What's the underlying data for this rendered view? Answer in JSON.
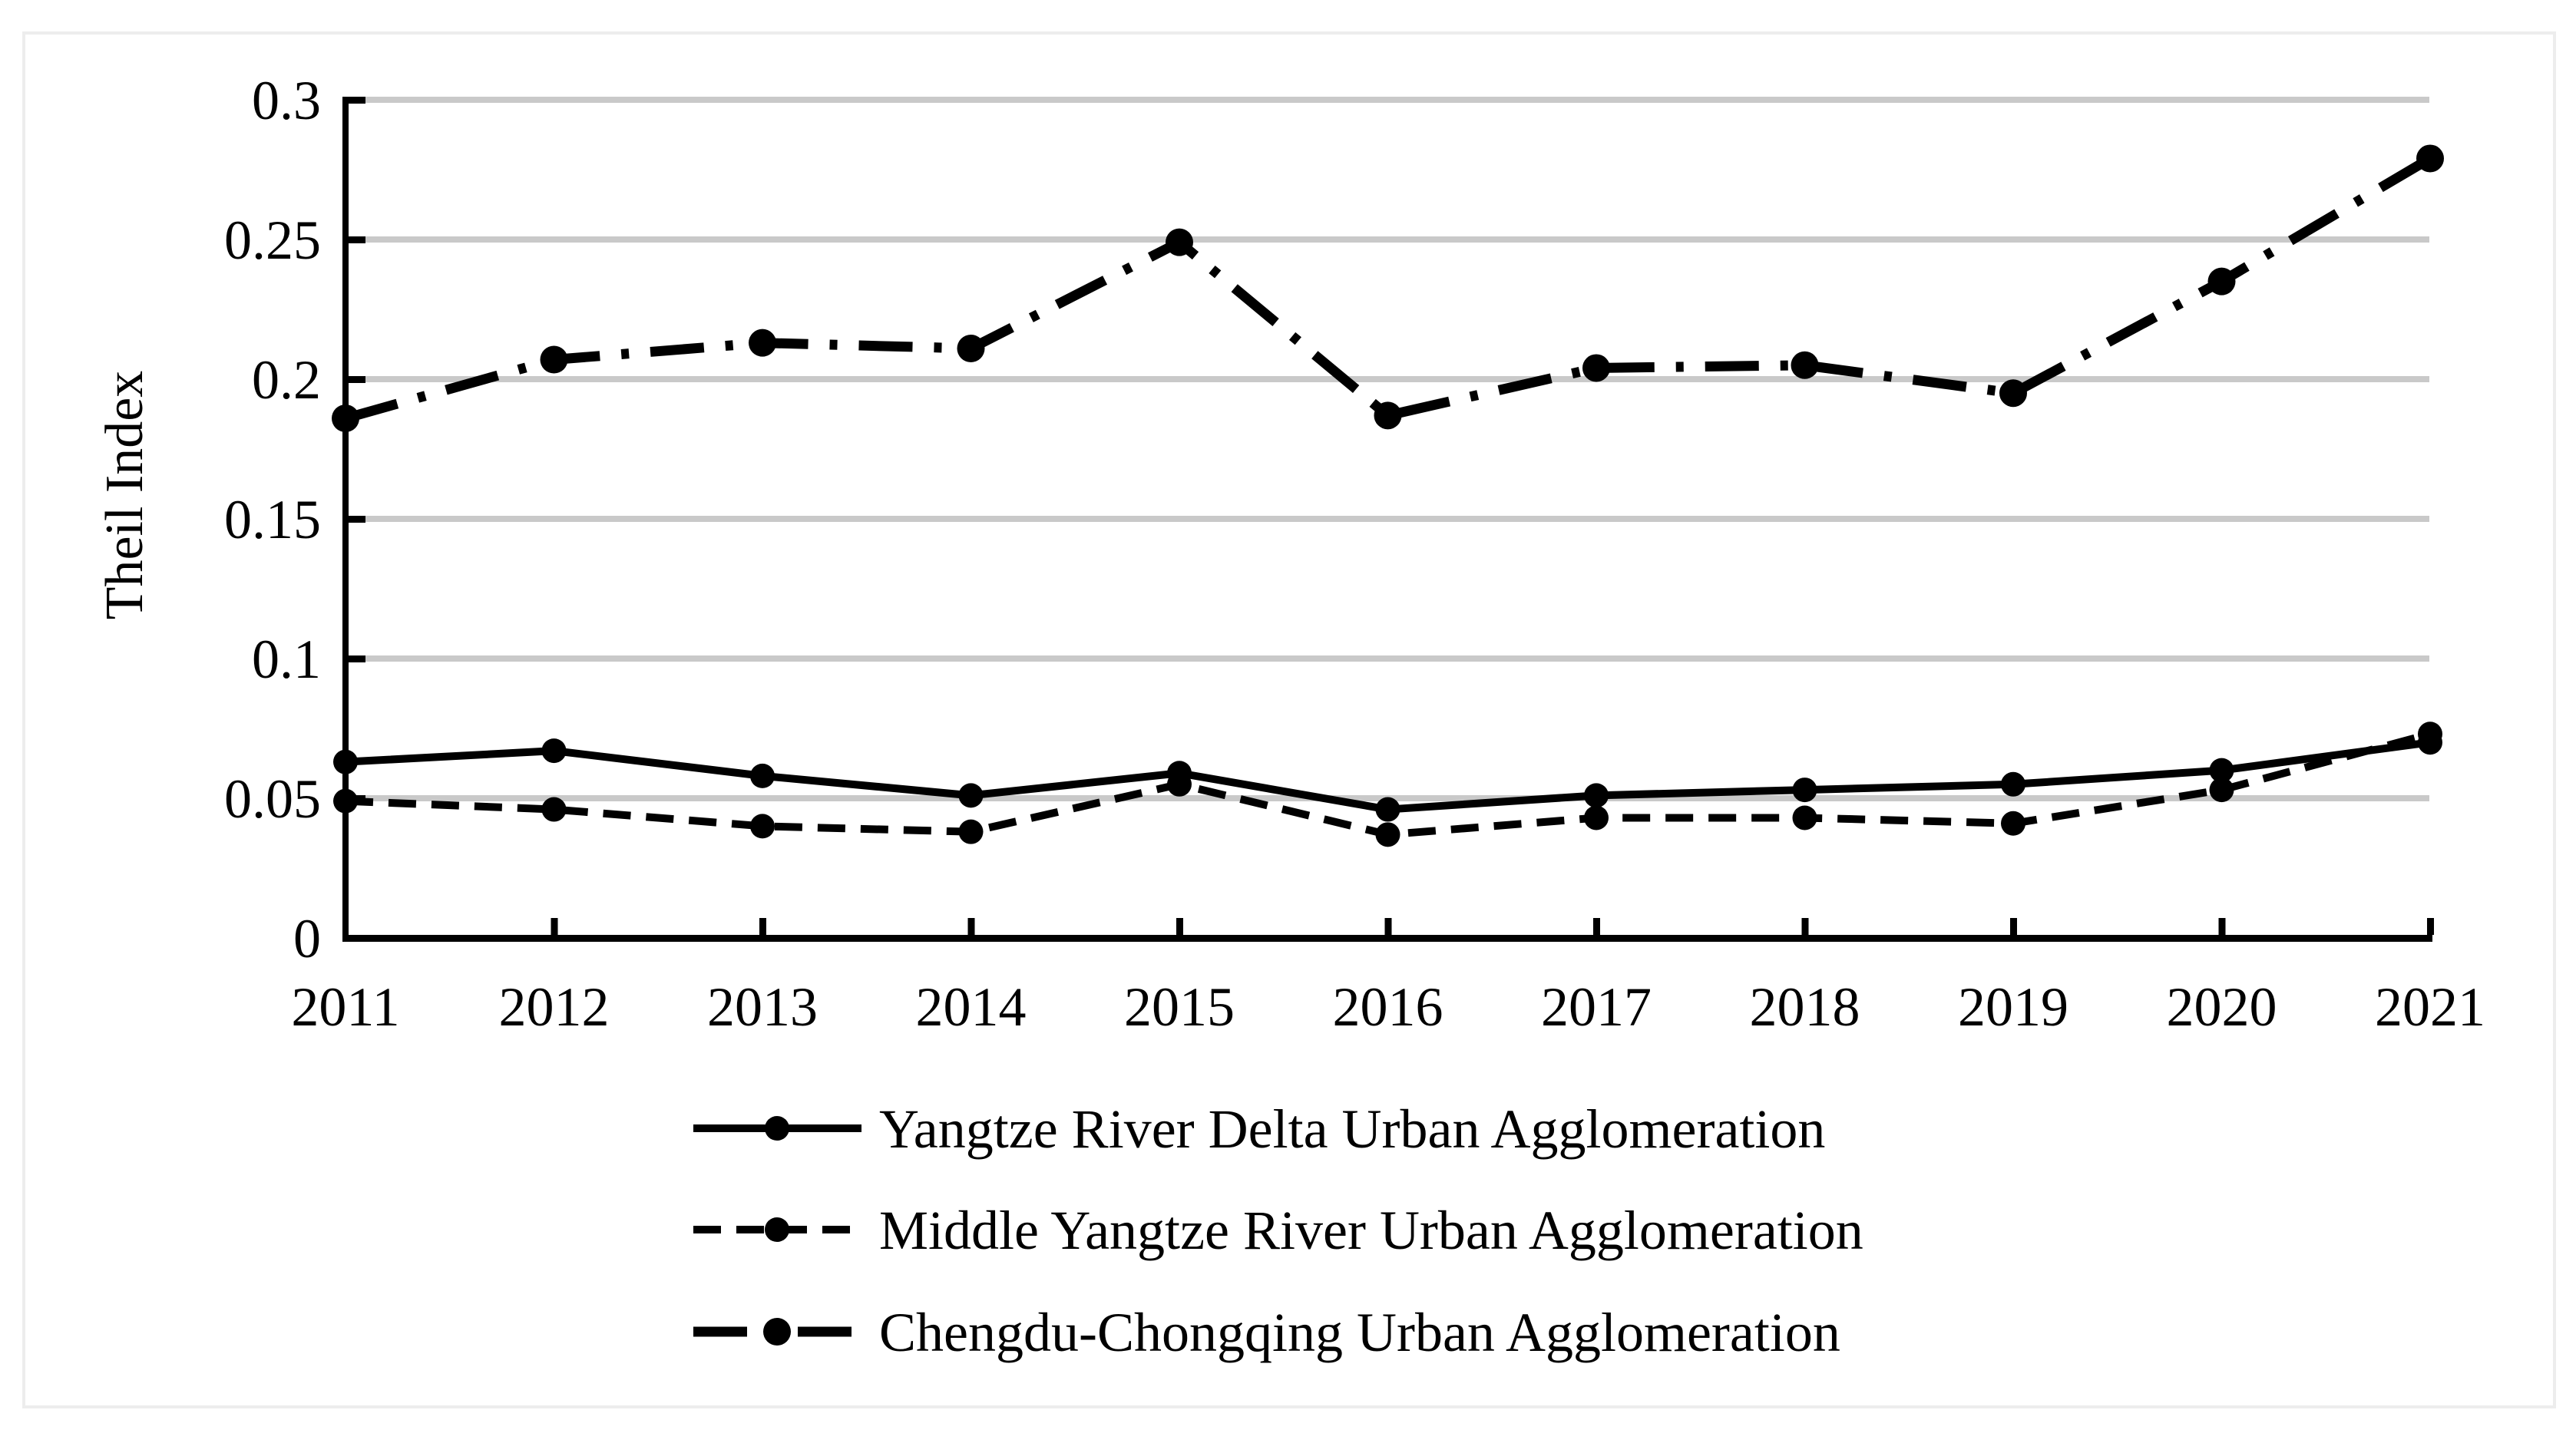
{
  "figure": {
    "background": "#ffffff",
    "figure_border_color": "#ededed",
    "gridline_color": "#c9c9c9",
    "axis_color": "#000000",
    "series_color": "#000000"
  },
  "chart_data": {
    "type": "line",
    "title": "",
    "xlabel": "",
    "ylabel": "Theil Index",
    "categories": [
      2011,
      2012,
      2013,
      2014,
      2015,
      2016,
      2017,
      2018,
      2019,
      2020,
      2021
    ],
    "ylim": [
      0,
      0.3
    ],
    "y_ticks": [
      "0",
      "0.05",
      "0.1",
      "0.15",
      "0.2",
      "0.25",
      "0.3"
    ],
    "y_tick_step": 0.05,
    "grid": "horizontal",
    "legend_position": "bottom-left",
    "series": [
      {
        "name": "Yangtze River Delta Urban Agglomeration",
        "line_style": "solid",
        "marker": "filled-circle",
        "color": "#000000",
        "values": [
          0.063,
          0.067,
          0.058,
          0.051,
          0.059,
          0.046,
          0.051,
          0.053,
          0.055,
          0.06,
          0.07
        ]
      },
      {
        "name": "Middle Yangtze River Urban Agglomeration",
        "line_style": "dashed",
        "marker": "filled-circle",
        "color": "#000000",
        "values": [
          0.049,
          0.046,
          0.04,
          0.038,
          0.055,
          0.037,
          0.043,
          0.043,
          0.041,
          0.053,
          0.073
        ]
      },
      {
        "name": "Chengdu-Chongqing Urban Agglomeration",
        "line_style": "dash-dot",
        "marker": "filled-circle",
        "color": "#000000",
        "values": [
          0.186,
          0.207,
          0.213,
          0.211,
          0.249,
          0.187,
          0.204,
          0.205,
          0.195,
          0.235,
          0.279
        ]
      }
    ]
  }
}
